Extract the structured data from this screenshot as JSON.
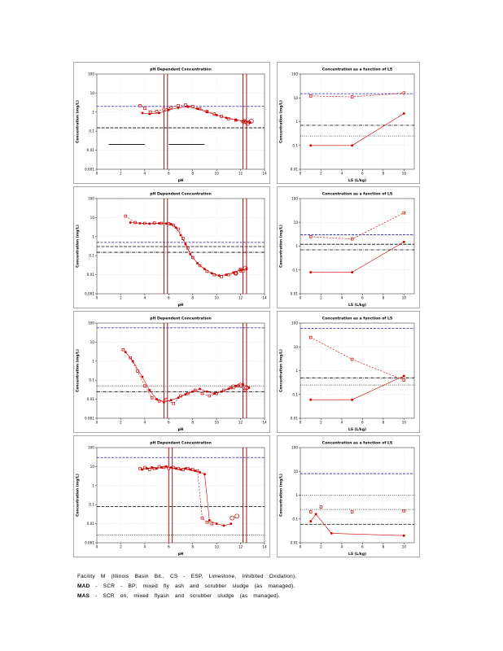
{
  "caption": {
    "line1": "Facility M (Illinois Basin Bit., CS - ESP, Limestone, Inhibited Oxidation).",
    "line2_term": "MAD",
    "line2_rest": "- SCR - BP; mixed fly ash and scrubber sludge (as managed).",
    "line3_term": "MAS",
    "line3_rest": "- SCR on; mixed flyash and scrubber sludge (as managed)."
  },
  "colors": {
    "data_red": "#cc0000",
    "natural_ph_line": "#990000",
    "reference_blue": "#2020a0",
    "reference_black": "#000000"
  },
  "chart_data": [
    {
      "id": "row1-ph",
      "type": "scatter",
      "title": "pH Dependent Concentration",
      "xlabel": "pH",
      "ylabel": "Concentration (mg/L)",
      "xlim": [
        0,
        14
      ],
      "xticks": [
        0,
        2,
        4,
        6,
        8,
        10,
        12,
        14
      ],
      "ylog": true,
      "ylim": [
        0.001,
        100
      ],
      "grid": "dotted",
      "legend": "none",
      "vlines": [
        {
          "x": 5.6,
          "color": "#990000"
        },
        {
          "x": 5.9,
          "color": "#990000"
        },
        {
          "x": 12.2,
          "color": "#990000"
        },
        {
          "x": 12.5,
          "color": "#990000"
        }
      ],
      "hlines": [
        {
          "y": 2.0,
          "color": "#2020a0",
          "dash": "3 1.5"
        },
        {
          "y": 0.15,
          "color": "#000000",
          "dash": "4 1.5"
        },
        {
          "y": 0.02,
          "color": "#000000",
          "x1": 1,
          "x2": 4
        },
        {
          "y": 0.02,
          "color": "#000000",
          "x1": 6,
          "x2": 9
        }
      ],
      "series": [
        {
          "name": "MAD",
          "marker": "open-square",
          "line": "dashed",
          "color": "#cc0000",
          "x": [
            3.6,
            4.0,
            4.5,
            5.0,
            5.6,
            6.2,
            6.8,
            7.4,
            8.0,
            8.6,
            9.2,
            9.8,
            10.4,
            11.0,
            11.6,
            12.2,
            12.7
          ],
          "y": [
            2.2,
            1.6,
            1.0,
            1.1,
            1.4,
            1.8,
            2.2,
            2.4,
            2.0,
            1.5,
            1.1,
            0.8,
            0.6,
            0.45,
            0.38,
            0.32,
            0.3
          ]
        },
        {
          "name": "MAS",
          "marker": "filled-square",
          "line": "solid",
          "color": "#cc0000",
          "x": [
            3.8,
            4.4,
            5.2,
            6.0,
            6.8,
            7.6,
            8.4,
            9.2,
            10.0,
            10.8,
            11.6,
            12.3,
            12.8
          ],
          "y": [
            0.9,
            0.8,
            0.9,
            1.3,
            1.7,
            1.9,
            1.5,
            1.0,
            0.7,
            0.5,
            0.4,
            0.33,
            0.28
          ]
        },
        {
          "name": "extract-circled",
          "marker": "open-circle",
          "line": "none",
          "color": "#cc0000",
          "x": [
            12.3,
            12.6,
            12.9
          ],
          "y": [
            0.32,
            0.26,
            0.34
          ]
        }
      ]
    },
    {
      "id": "row1-ls",
      "type": "scatter",
      "title": "Concentration as a function of LS",
      "xlabel": "LS  (L/kg)",
      "ylabel": "Concentration (mg/L)",
      "xlim": [
        0,
        11
      ],
      "xticks": [
        0,
        2,
        4,
        6,
        8,
        10
      ],
      "ylog": true,
      "ylim": [
        0.01,
        100
      ],
      "grid": "dotted",
      "legend": "none",
      "vlines": [],
      "hlines": [
        {
          "y": 15,
          "color": "#2020a0",
          "dash": "3 1.5"
        },
        {
          "y": 0.7,
          "color": "#000000",
          "dash": "4 1.2 0.8 1.2"
        },
        {
          "y": 0.25,
          "color": "#000000",
          "dash": "0.8 1.6"
        }
      ],
      "series": [
        {
          "name": "MAD",
          "marker": "open-square",
          "line": "dashed",
          "color": "#cc0000",
          "x": [
            1,
            5,
            10
          ],
          "y": [
            12,
            11,
            16
          ]
        },
        {
          "name": "MAS",
          "marker": "filled-square",
          "line": "solid",
          "color": "#cc0000",
          "x": [
            1,
            5,
            10
          ],
          "y": [
            0.1,
            0.1,
            2.2
          ]
        }
      ]
    },
    {
      "id": "row2-ph",
      "type": "scatter",
      "title": "pH Dependent Concentration",
      "xlabel": "pH",
      "ylabel": "Concentration (mg/L)",
      "xlim": [
        0,
        14
      ],
      "xticks": [
        0,
        2,
        4,
        6,
        8,
        10,
        12,
        14
      ],
      "ylog": true,
      "ylim": [
        0.001,
        100
      ],
      "grid": "dotted",
      "legend": "none",
      "vlines": [
        {
          "x": 5.6,
          "color": "#990000"
        },
        {
          "x": 5.9,
          "color": "#990000"
        },
        {
          "x": 12.2,
          "color": "#990000"
        },
        {
          "x": 12.5,
          "color": "#990000"
        }
      ],
      "hlines": [
        {
          "y": 0.5,
          "color": "#2020a0",
          "dash": "3 1.5"
        },
        {
          "y": 0.3,
          "color": "#000000",
          "dash": "4 1.5"
        },
        {
          "y": 0.15,
          "color": "#000000",
          "dash": "4 1.2 0.8 1.2"
        }
      ],
      "series": [
        {
          "name": "MAD",
          "marker": "open-square",
          "line": "dashed",
          "color": "#cc0000",
          "x": [
            2.4,
            3.2,
            4.0,
            4.8,
            5.4,
            6.0,
            6.4,
            6.8,
            7.2,
            7.6,
            8.0,
            8.6,
            9.2,
            9.8,
            10.4,
            11.0,
            11.6,
            12.2
          ],
          "y": [
            12,
            5.5,
            5.0,
            5.2,
            5.0,
            4.8,
            4.0,
            2.5,
            0.8,
            0.25,
            0.08,
            0.03,
            0.015,
            0.01,
            0.008,
            0.01,
            0.012,
            0.015
          ]
        },
        {
          "name": "MAS",
          "marker": "filled-square",
          "line": "solid",
          "color": "#cc0000",
          "x": [
            2.8,
            3.6,
            4.4,
            5.2,
            5.8,
            6.2,
            6.6,
            7.0,
            7.4,
            7.8,
            8.4,
            9.0,
            9.6,
            10.2,
            10.8,
            11.4,
            12.0,
            12.5
          ],
          "y": [
            5.5,
            5.0,
            4.8,
            5.0,
            4.9,
            4.5,
            3.0,
            1.2,
            0.4,
            0.12,
            0.04,
            0.02,
            0.012,
            0.009,
            0.01,
            0.013,
            0.018,
            0.02
          ]
        },
        {
          "name": "extract-circled",
          "marker": "open-circle",
          "line": "none",
          "color": "#cc0000",
          "x": [
            11.6,
            12.0,
            12.4
          ],
          "y": [
            0.012,
            0.018,
            0.022
          ]
        }
      ]
    },
    {
      "id": "row2-ls",
      "type": "scatter",
      "title": "Concentration as a function of LS",
      "xlabel": "LS  (L/kg)",
      "ylabel": "Concentration (mg/L)",
      "xlim": [
        0,
        11
      ],
      "xticks": [
        0,
        2,
        4,
        6,
        8,
        10
      ],
      "ylog": true,
      "ylim": [
        0.01,
        100
      ],
      "grid": "dotted",
      "legend": "none",
      "vlines": [],
      "hlines": [
        {
          "y": 3,
          "color": "#2020a0",
          "dash": "3 1.5"
        },
        {
          "y": 1.2,
          "color": "#000000",
          "dash": "4 1.5"
        },
        {
          "y": 0.7,
          "color": "#000000",
          "dash": "4 1.2 0.8 1.2"
        }
      ],
      "series": [
        {
          "name": "MAD",
          "marker": "open-square",
          "line": "dashed",
          "color": "#cc0000",
          "x": [
            1,
            5,
            10
          ],
          "y": [
            2.5,
            2.0,
            25
          ]
        },
        {
          "name": "MAS",
          "marker": "filled-square",
          "line": "solid",
          "color": "#cc0000",
          "x": [
            1,
            5,
            10
          ],
          "y": [
            0.08,
            0.08,
            1.5
          ]
        }
      ]
    },
    {
      "id": "row3-ph",
      "type": "scatter",
      "title": "pH Dependent Concentration",
      "xlabel": "pH",
      "ylabel": "Concentration (mg/L)",
      "xlim": [
        0,
        14
      ],
      "xticks": [
        0,
        2,
        4,
        6,
        8,
        10,
        12,
        14
      ],
      "ylog": true,
      "ylim": [
        0.001,
        100
      ],
      "grid": "dotted",
      "legend": "none",
      "vlines": [
        {
          "x": 5.6,
          "color": "#990000"
        },
        {
          "x": 5.9,
          "color": "#990000"
        },
        {
          "x": 12.2,
          "color": "#990000"
        },
        {
          "x": 12.5,
          "color": "#990000"
        }
      ],
      "hlines": [
        {
          "y": 56,
          "color": "#2020a0",
          "dash": "3 1.5"
        },
        {
          "y": 0.05,
          "color": "#000000",
          "dash": "0.8 1.6"
        },
        {
          "y": 0.025,
          "color": "#000000",
          "dash": "4 1.2 0.8 1.2"
        }
      ],
      "series": [
        {
          "name": "MAD",
          "marker": "open-square",
          "line": "dashed",
          "color": "#cc0000",
          "x": [
            2.2,
            2.8,
            3.4,
            4.0,
            4.6,
            5.2,
            5.8,
            6.4,
            7.0,
            7.6,
            8.2,
            8.8,
            9.4,
            10.0,
            10.6,
            11.2,
            11.8,
            12.4
          ],
          "y": [
            4,
            1.5,
            0.3,
            0.05,
            0.012,
            0.008,
            0.01,
            0.006,
            0.015,
            0.02,
            0.03,
            0.02,
            0.015,
            0.02,
            0.03,
            0.04,
            0.05,
            0.03
          ]
        },
        {
          "name": "MAS",
          "marker": "filled-square",
          "line": "solid",
          "color": "#cc0000",
          "x": [
            2.4,
            3.0,
            3.8,
            4.4,
            5.0,
            5.6,
            6.2,
            6.8,
            7.4,
            8.0,
            8.6,
            9.2,
            9.8,
            10.4,
            11.0,
            11.6,
            12.2,
            12.7
          ],
          "y": [
            3,
            1.0,
            0.15,
            0.03,
            0.01,
            0.007,
            0.009,
            0.012,
            0.018,
            0.025,
            0.035,
            0.025,
            0.02,
            0.025,
            0.035,
            0.05,
            0.06,
            0.04
          ]
        },
        {
          "name": "extract-circled",
          "marker": "open-circle",
          "line": "none",
          "color": "#cc0000",
          "x": [
            11.4,
            12.0,
            12.5
          ],
          "y": [
            0.045,
            0.055,
            0.04
          ]
        }
      ]
    },
    {
      "id": "row3-ls",
      "type": "scatter",
      "title": "Concentration as a function of LS",
      "xlabel": "LS  (L/kg)",
      "ylabel": "Concentration (mg/L)",
      "xlim": [
        0,
        11
      ],
      "xticks": [
        0,
        2,
        4,
        6,
        8,
        10
      ],
      "ylog": true,
      "ylim": [
        0.01,
        100
      ],
      "grid": "dotted",
      "legend": "none",
      "vlines": [],
      "hlines": [
        {
          "y": 60,
          "color": "#2020a0",
          "dash": "3 1.5"
        },
        {
          "y": 0.5,
          "color": "#000000",
          "dash": "4 1.2 0.8 1.2"
        },
        {
          "y": 0.25,
          "color": "#000000",
          "dash": "0.8 1.6"
        }
      ],
      "series": [
        {
          "name": "MAD",
          "marker": "open-square",
          "line": "dashed",
          "color": "#cc0000",
          "x": [
            1,
            5,
            10
          ],
          "y": [
            25,
            3,
            0.4
          ]
        },
        {
          "name": "MAS",
          "marker": "filled-square",
          "line": "solid",
          "color": "#cc0000",
          "x": [
            1,
            5,
            10
          ],
          "y": [
            0.06,
            0.06,
            0.6
          ]
        }
      ]
    },
    {
      "id": "row4-ph",
      "type": "scatter",
      "title": "pH Dependent Concentration",
      "xlabel": "pH",
      "ylabel": "Concentration (mg/L)",
      "xlim": [
        0,
        14
      ],
      "xticks": [
        0,
        2,
        4,
        6,
        8,
        10,
        12,
        14
      ],
      "ylog": true,
      "ylim": [
        0.001,
        100
      ],
      "grid": "dotted",
      "legend": "none",
      "vlines": [
        {
          "x": 6.0,
          "color": "#990000"
        },
        {
          "x": 6.3,
          "color": "#990000"
        },
        {
          "x": 12.2,
          "color": "#990000"
        },
        {
          "x": 12.5,
          "color": "#990000"
        }
      ],
      "hlines": [
        {
          "y": 30,
          "color": "#2020a0",
          "dash": "3 1.5"
        },
        {
          "y": 0.08,
          "color": "#000000",
          "dash": "4 1.5"
        },
        {
          "y": 0.0025,
          "color": "#000000",
          "dash": "0.8 1.6"
        }
      ],
      "series": [
        {
          "name": "MAD",
          "marker": "open-square",
          "line": "dashed",
          "color": "#cc0000",
          "x": [
            3.6,
            4.0,
            4.4,
            4.8,
            5.2,
            5.6,
            6.0,
            6.4,
            6.8,
            7.2,
            7.6,
            8.0,
            8.4,
            8.8,
            9.2,
            9.6
          ],
          "y": [
            8,
            9,
            7,
            8,
            10,
            9,
            8,
            9,
            8,
            7,
            8,
            7,
            6,
            0.02,
            0.012,
            0.01
          ]
        },
        {
          "name": "MAS",
          "marker": "filled-square",
          "line": "solid",
          "color": "#cc0000",
          "x": [
            3.8,
            4.2,
            4.6,
            5.0,
            5.4,
            5.8,
            6.2,
            6.6,
            7.0,
            7.4,
            7.8,
            8.2,
            8.6,
            9.0,
            9.4,
            10.0,
            10.6,
            11.2
          ],
          "y": [
            7,
            8,
            9,
            8,
            9,
            10,
            9,
            8,
            7,
            8,
            7,
            6,
            5,
            4,
            0.015,
            0.01,
            0.008,
            0.01
          ]
        },
        {
          "name": "extract-circled",
          "marker": "open-circle",
          "line": "none",
          "color": "#cc0000",
          "x": [
            11.3,
            11.7
          ],
          "y": [
            0.02,
            0.025
          ]
        }
      ]
    },
    {
      "id": "row4-ls",
      "type": "scatter",
      "title": "Concentration as a function of LS",
      "xlabel": "LS  (L/kg)",
      "ylabel": "Concentration (mg/L)",
      "xlim": [
        0,
        11
      ],
      "xticks": [
        0,
        2,
        4,
        6,
        8,
        10
      ],
      "ylog": true,
      "ylim": [
        0.01,
        100
      ],
      "grid": "dotted",
      "legend": "none",
      "vlines": [],
      "hlines": [
        {
          "y": 8,
          "color": "#2020a0",
          "dash": "3 1.5"
        },
        {
          "y": 1,
          "color": "#000000",
          "dash": "0.8 1.6"
        },
        {
          "y": 0.25,
          "color": "#000000",
          "dash": "0.8 1.6"
        },
        {
          "y": 0.06,
          "color": "#000000",
          "dash": "4 1.5"
        }
      ],
      "series": [
        {
          "name": "MAD",
          "marker": "open-square",
          "line": "none",
          "color": "#cc0000",
          "x": [
            1,
            2,
            5,
            10
          ],
          "y": [
            0.2,
            0.32,
            0.2,
            0.22
          ]
        },
        {
          "name": "MAS",
          "marker": "filled-square",
          "line": "solid",
          "color": "#cc0000",
          "x": [
            1,
            1.5,
            3,
            10
          ],
          "y": [
            0.08,
            0.16,
            0.025,
            0.02
          ]
        }
      ]
    }
  ]
}
